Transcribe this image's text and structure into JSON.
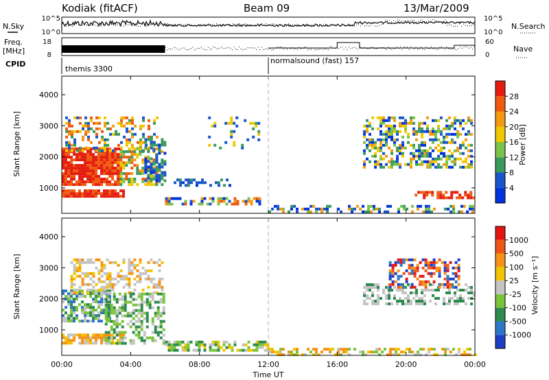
{
  "header": {
    "station": "Kodiak (fitACF)",
    "beam": "Beam 09",
    "date": "13/Mar/2009"
  },
  "top_panels": {
    "nsky_label": "N.Sky",
    "nsky_ticks": [
      "10^5",
      "10^0"
    ],
    "nsearch_label": "N.Search",
    "nsearch_ticks": [
      "10^5",
      "10^0"
    ],
    "freq_label": "Freq.",
    "freq_unit": "[MHz]",
    "freq_ticks": [
      "18",
      "8"
    ],
    "nave_label": "Nave",
    "nave_ticks": [
      "60",
      "0"
    ],
    "cpid_label": "CPID",
    "cpid_segments": [
      {
        "name": "themis 3300",
        "start_hour": 0
      },
      {
        "name": "normalsound (fast) 157",
        "start_hour": 12
      }
    ]
  },
  "chart_data": [
    {
      "type": "heatmap",
      "title": "",
      "ylabel": "Slant Range [km]",
      "xlabel": "",
      "ylim": [
        180,
        4600
      ],
      "yticks": [
        "1000",
        "2000",
        "3000",
        "4000"
      ],
      "colorbar_label": "Power [dB]",
      "colorbar_ticks": [
        "4",
        "8",
        "12",
        "16",
        "20",
        "24",
        "28"
      ],
      "colorbar_colors": [
        "#0033dd",
        "#1a55cc",
        "#3a9a5a",
        "#7cc34a",
        "#f0c800",
        "#f39a12",
        "#ef5a10",
        "#e51c10"
      ]
    },
    {
      "type": "heatmap",
      "title": "",
      "ylabel": "Slant Range [km]",
      "xlabel": "Time UT",
      "ylim": [
        180,
        4600
      ],
      "yticks": [
        "1000",
        "2000",
        "3000",
        "4000"
      ],
      "xticks": [
        "00:00",
        "04:00",
        "08:00",
        "12:00",
        "16:00",
        "20:00",
        "00:00"
      ],
      "colorbar_label": "Velocity [m s⁻¹]",
      "colorbar_ticks": [
        "1000",
        "500",
        "100",
        "25",
        "-25",
        "-100",
        "-500",
        "-1000"
      ],
      "colorbar_colors": [
        "#1d3ec5",
        "#2e77c8",
        "#2c8a4e",
        "#79c43a",
        "#c4c4c4",
        "#f2c400",
        "#f59316",
        "#ef5518",
        "#e31414"
      ]
    }
  ]
}
